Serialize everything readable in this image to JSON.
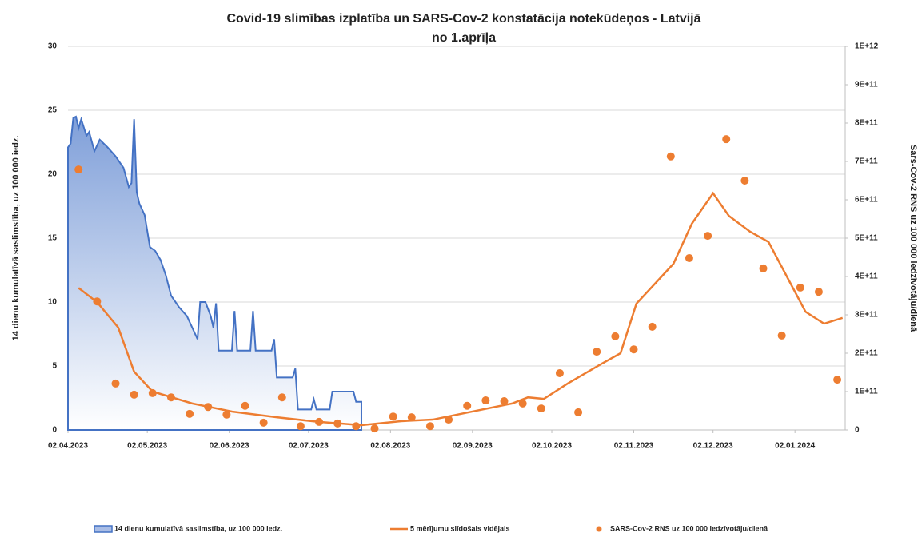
{
  "chart_data": {
    "type": "combo",
    "title": "Covid-19 slimības izplatība un SARS-Cov-2 konstatācija notekūdeņos - Latvijā",
    "subtitle": "no 1.aprīļa",
    "y_label": "14 dienu kumulatīvā saslimstība, uz 100 000 iedz.",
    "y2_label": "Sars-Cov-2 RNS uz 100 000 iedzīvotāju/dienā",
    "grid": true,
    "legend": "bottom",
    "xlim": [
      "2023-04-02",
      "2024-01-21"
    ],
    "xticks": [
      {
        "value": "2023-04-02",
        "label": "02.04.2023"
      },
      {
        "value": "2023-05-02",
        "label": "02.05.2023"
      },
      {
        "value": "2023-06-02",
        "label": "02.06.2023"
      },
      {
        "value": "2023-07-02",
        "label": "02.07.2023"
      },
      {
        "value": "2023-08-02",
        "label": "02.08.2023"
      },
      {
        "value": "2023-09-02",
        "label": "02.09.2023"
      },
      {
        "value": "2023-10-02",
        "label": "02.10.2023"
      },
      {
        "value": "2023-11-02",
        "label": "02.11.2023"
      },
      {
        "value": "2023-12-02",
        "label": "02.12.2023"
      },
      {
        "value": "2024-01-02",
        "label": "02.01.2024"
      }
    ],
    "ylim": [
      0,
      30
    ],
    "yticks": [
      0,
      5,
      10,
      15,
      20,
      25,
      30
    ],
    "y2lim": [
      0,
      1000000000000.0
    ],
    "y2ticks": [
      0,
      {
        "value": 100000000000.0,
        "label": "1E+11"
      },
      {
        "value": 200000000000.0,
        "label": "2E+11"
      },
      {
        "value": 300000000000.0,
        "label": "3E+11"
      },
      {
        "value": 400000000000.0,
        "label": "4E+11"
      },
      {
        "value": 500000000000.0,
        "label": "5E+11"
      },
      {
        "value": 600000000000.0,
        "label": "6E+11"
      },
      {
        "value": 700000000000.0,
        "label": "7E+11"
      },
      {
        "value": 800000000000.0,
        "label": "8E+11"
      },
      {
        "value": 900000000000.0,
        "label": "9E+11"
      },
      {
        "value": 1000000000000.0,
        "label": "1E+12"
      }
    ],
    "series": [
      {
        "name": "14 dienu kumulatīvā saslimstība, uz 100 000 iedz.",
        "type": "area",
        "axis": "y",
        "color": "#4472c4",
        "x": [
          "2023-04-02",
          "2023-04-03",
          "2023-04-04",
          "2023-04-05",
          "2023-04-06",
          "2023-04-07",
          "2023-04-09",
          "2023-04-10",
          "2023-04-12",
          "2023-04-14",
          "2023-04-17",
          "2023-04-20",
          "2023-04-23",
          "2023-04-25",
          "2023-04-26",
          "2023-04-27",
          "2023-04-28",
          "2023-04-29",
          "2023-05-01",
          "2023-05-03",
          "2023-05-05",
          "2023-05-07",
          "2023-05-09",
          "2023-05-11",
          "2023-05-14",
          "2023-05-17",
          "2023-05-19",
          "2023-05-21",
          "2023-05-22",
          "2023-05-24",
          "2023-05-26",
          "2023-05-27",
          "2023-05-28",
          "2023-05-29",
          "2023-06-03",
          "2023-06-04",
          "2023-06-05",
          "2023-06-10",
          "2023-06-11",
          "2023-06-12",
          "2023-06-18",
          "2023-06-19",
          "2023-06-20",
          "2023-06-26",
          "2023-06-27",
          "2023-06-28",
          "2023-07-03",
          "2023-07-04",
          "2023-07-05",
          "2023-07-10",
          "2023-07-11",
          "2023-07-19",
          "2023-07-20",
          "2023-07-22"
        ],
        "values": [
          22.1,
          22.4,
          24.4,
          24.5,
          23.6,
          24.3,
          23,
          23.3,
          21.8,
          22.7,
          22.1,
          21.4,
          20.5,
          19,
          19.3,
          24.3,
          18.6,
          17.7,
          16.8,
          14.3,
          14,
          13.3,
          12.1,
          10.5,
          9.6,
          8.9,
          8,
          7.1,
          10,
          10,
          8.9,
          8,
          9.9,
          6.2,
          6.2,
          9.3,
          6.2,
          6.2,
          9.3,
          6.2,
          6.2,
          7.1,
          4.1,
          4.1,
          4.8,
          1.6,
          1.6,
          2.4,
          1.6,
          1.6,
          3,
          3,
          2.2,
          2.2
        ]
      },
      {
        "name": "5 mērījumu slīdošais vidējais",
        "type": "line",
        "axis": "y2",
        "color": "#ed7d31",
        "x": [
          "2023-04-06",
          "2023-04-13",
          "2023-04-21",
          "2023-04-27",
          "2023-05-04",
          "2023-05-19",
          "2023-06-03",
          "2023-06-20",
          "2023-07-06",
          "2023-07-22",
          "2023-08-06",
          "2023-08-18",
          "2023-09-02",
          "2023-09-17",
          "2023-09-23",
          "2023-09-29",
          "2023-10-08",
          "2023-10-21",
          "2023-10-28",
          "2023-11-03",
          "2023-11-17",
          "2023-11-24",
          "2023-12-02",
          "2023-12-08",
          "2023-12-16",
          "2023-12-23",
          "2024-01-06",
          "2024-01-13",
          "2024-01-20"
        ],
        "values": [
          370000000000.0,
          333000000000.0,
          267000000000.0,
          152000000000.0,
          100000000000.0,
          69000000000.0,
          48000000000.0,
          33000000000.0,
          21000000000.0,
          12500000000.0,
          23000000000.0,
          27000000000.0,
          48000000000.0,
          69000000000.0,
          85000000000.0,
          81000000000.0,
          121000000000.0,
          173000000000.0,
          200000000000.0,
          329000000000.0,
          433000000000.0,
          538000000000.0,
          617000000000.0,
          558000000000.0,
          517000000000.0,
          490000000000.0,
          308000000000.0,
          277000000000.0,
          292000000000.0
        ]
      },
      {
        "name": "SARS-Cov-2 RNS uz 100 000 iedzīvotāju/dienā",
        "type": "scatter",
        "axis": "y2",
        "color": "#ed7d31",
        "x": [
          "2023-04-06",
          "2023-04-13",
          "2023-04-20",
          "2023-04-27",
          "2023-05-04",
          "2023-05-11",
          "2023-05-18",
          "2023-05-25",
          "2023-06-01",
          "2023-06-08",
          "2023-06-15",
          "2023-06-22",
          "2023-06-29",
          "2023-07-06",
          "2023-07-13",
          "2023-07-20",
          "2023-07-27",
          "2023-08-03",
          "2023-08-10",
          "2023-08-17",
          "2023-08-24",
          "2023-08-31",
          "2023-09-07",
          "2023-09-14",
          "2023-09-21",
          "2023-09-28",
          "2023-10-05",
          "2023-10-12",
          "2023-10-19",
          "2023-10-26",
          "2023-11-02",
          "2023-11-09",
          "2023-11-16",
          "2023-11-23",
          "2023-11-30",
          "2023-12-07",
          "2023-12-14",
          "2023-12-21",
          "2023-12-28",
          "2024-01-04",
          "2024-01-11",
          "2024-01-18"
        ],
        "values": [
          679000000000.0,
          335000000000.0,
          121000000000.0,
          92000000000.0,
          96000000000.0,
          85000000000.0,
          42000000000.0,
          60000000000.0,
          40000000000.0,
          63000000000.0,
          19000000000.0,
          85000000000.0,
          10000000000.0,
          21000000000.0,
          17000000000.0,
          10000000000.0,
          4000000000.0,
          35000000000.0,
          33000000000.0,
          10000000000.0,
          27000000000.0,
          63000000000.0,
          77000000000.0,
          75000000000.0,
          69000000000.0,
          56000000000.0,
          148000000000.0,
          46000000000.0,
          204000000000.0,
          244000000000.0,
          210000000000.0,
          269000000000.0,
          713000000000.0,
          448000000000.0,
          506000000000.0,
          758000000000.0,
          650000000000.0,
          421000000000.0,
          246000000000.0,
          371000000000.0,
          360000000000.0,
          131000000000.0
        ]
      }
    ]
  }
}
